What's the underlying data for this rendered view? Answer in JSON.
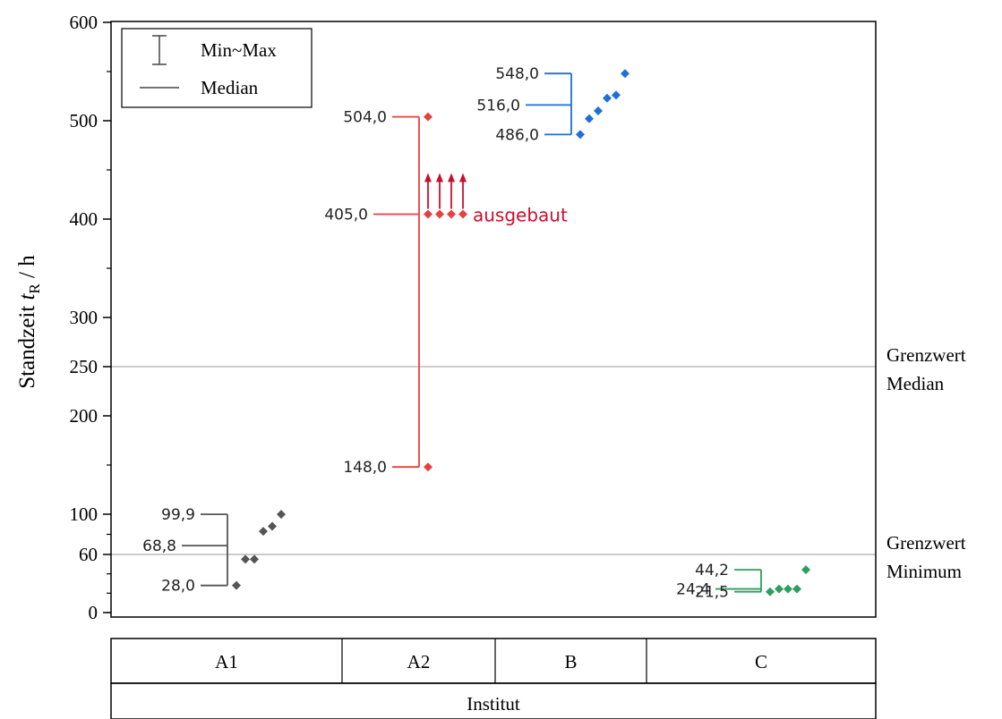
{
  "chart_data": {
    "type": "scatter",
    "title": "",
    "ylabel_prefix": "Standzeit ",
    "ylabel_var": "t",
    "ylabel_sub": "R",
    "ylabel_suffix": " / h",
    "xlabel": "Institut",
    "ylim": [
      0,
      600
    ],
    "y_ticks": [
      "0",
      "60",
      "100",
      "200",
      "250",
      "300",
      "400",
      "500",
      "600"
    ],
    "y_tick_values": [
      0,
      60,
      100,
      200,
      250,
      300,
      400,
      500,
      600
    ],
    "y_axis_break": "nonlinear scale below 100",
    "grid": false,
    "legend": {
      "position": "top-left",
      "items": [
        {
          "symbol": "error-bar",
          "label": "Min~Max"
        },
        {
          "symbol": "line",
          "label": "Median"
        }
      ]
    },
    "reference_lines": [
      {
        "value": 250,
        "label_line1": "Grenzwert",
        "label_line2": "Median",
        "color": "#999999"
      },
      {
        "value": 60,
        "label_line1": "Grenzwert",
        "label_line2": "Minimum",
        "color": "#999999"
      }
    ],
    "groups": [
      {
        "name": "A1",
        "color": "#555555",
        "points": [
          28.0,
          55,
          55,
          83,
          88,
          99.9
        ],
        "min": 28.0,
        "median": 68.8,
        "max": 99.9,
        "min_label": "28,0",
        "median_label": "68,8",
        "max_label": "99,9"
      },
      {
        "name": "A2",
        "color": "#e84040",
        "points": [
          148.0,
          405.0,
          405.0,
          405.0,
          405.0,
          504.0
        ],
        "min": 148.0,
        "median": 405.0,
        "max": 504.0,
        "min_label": "148,0",
        "median_label": "405,0",
        "max_label": "504,0",
        "annotation": "ausgebaut",
        "annotation_color": "#c8102e",
        "arrows_from": 405.0
      },
      {
        "name": "B",
        "color": "#1f6fd6",
        "points": [
          486.0,
          502,
          510,
          523,
          526,
          548.0
        ],
        "min": 486.0,
        "median": 516.0,
        "max": 548.0,
        "min_label": "486,0",
        "median_label": "516,0",
        "max_label": "548,0"
      },
      {
        "name": "C",
        "color": "#2e9e5e",
        "points": [
          21.5,
          24.4,
          24.4,
          24.4,
          44.2
        ],
        "min": 21.5,
        "median": 24.4,
        "max": 44.2,
        "min_label": "21,5",
        "median_label": "24,4",
        "max_label": "44,2"
      }
    ]
  }
}
